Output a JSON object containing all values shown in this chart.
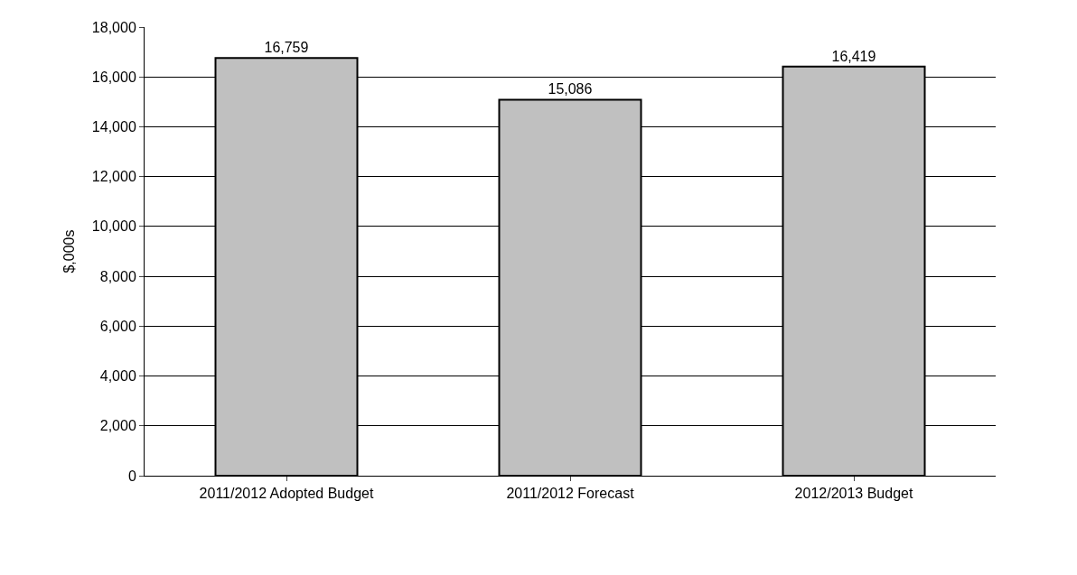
{
  "chart_data": {
    "type": "bar",
    "ylabel": "$,000s",
    "categories": [
      "2011/2012 Adopted Budget",
      "2011/2012 Forecast",
      "2012/2013 Budget"
    ],
    "values": [
      16759,
      15086,
      16419
    ],
    "color": "#c0c0c0",
    "value_labels": [
      "16,759",
      "15,086",
      "16,419"
    ],
    "ylim": [
      0,
      18000
    ],
    "yticks": [
      {
        "value": 0,
        "label": "0"
      },
      {
        "value": 2000,
        "label": "2,000"
      },
      {
        "value": 4000,
        "label": "4,000"
      },
      {
        "value": 6000,
        "label": "6,000"
      },
      {
        "value": 8000,
        "label": "8,000"
      },
      {
        "value": 10000,
        "label": "10,000"
      },
      {
        "value": 12000,
        "label": "12,000"
      },
      {
        "value": 14000,
        "label": "14,000"
      },
      {
        "value": 16000,
        "label": "16,000"
      },
      {
        "value": 18000,
        "label": "18,000"
      }
    ],
    "grid": "y"
  }
}
